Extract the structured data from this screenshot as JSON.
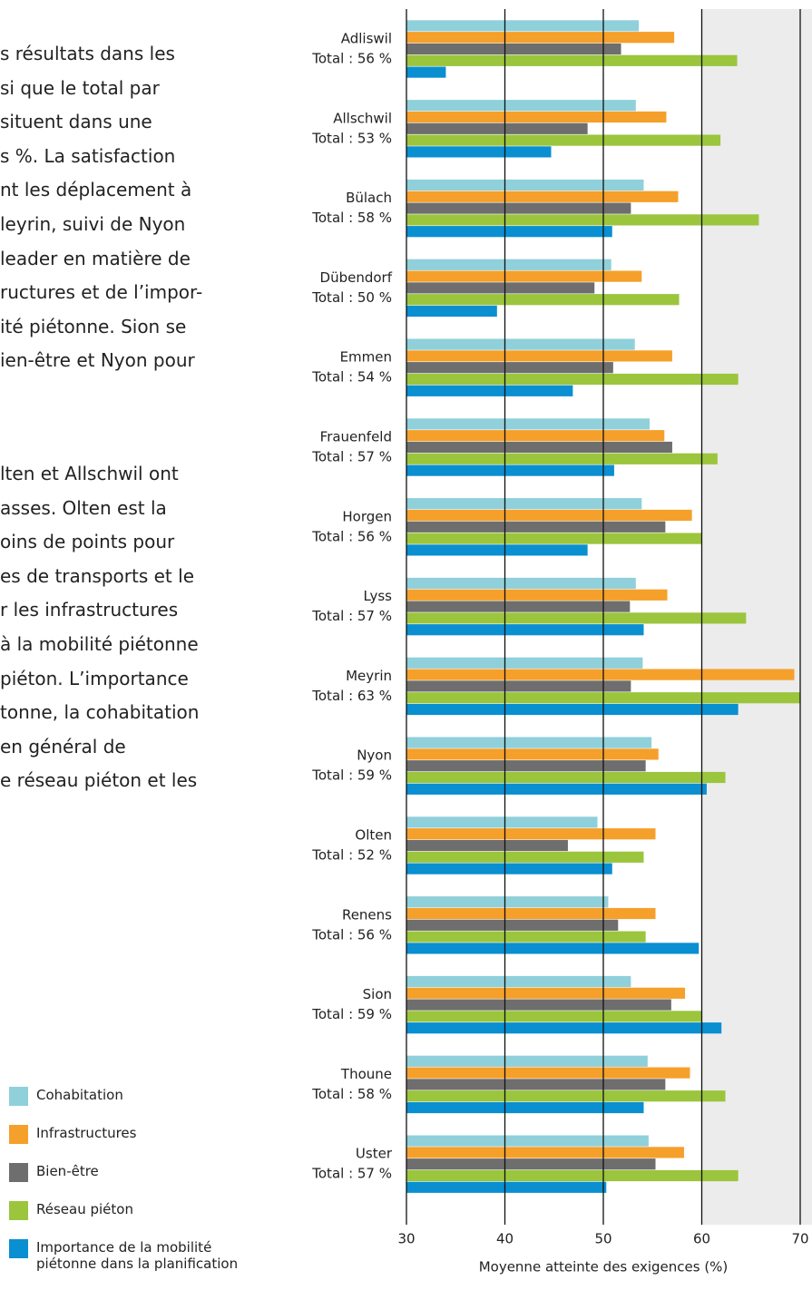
{
  "text_paragraphs": [
    [
      "s résultats dans les",
      "si que le total par",
      "situent dans une",
      "s %. La satisfaction",
      "nt les déplacement à",
      "leyrin, suivi de Nyon",
      "leader en matière de",
      "ructures et de l’impor-",
      "ité piétonne. Sion se",
      "ien-être et Nyon pour"
    ],
    [
      "lten et Allschwil ont",
      "asses. Olten est la",
      "oins de points pour",
      "es de transports et le",
      "r les infrastructures",
      "à la mobilité piétonne",
      "piéton. L’importance",
      "tonne, la cohabitation",
      "en général de",
      "e réseau piéton et les"
    ]
  ],
  "chart_data": {
    "type": "hbar",
    "xlabel": "Moyenne atteinte des exigences (%)",
    "categories": [
      "Adliswil",
      "Allschwil",
      "Bülach",
      "Dübendorf",
      "Emmen",
      "Frauenfeld",
      "Horgen",
      "Lyss",
      "Meyrin",
      "Nyon",
      "Olten",
      "Renens",
      "Sion",
      "Thoune",
      "Uster"
    ],
    "totals": [
      "Total : 56 %",
      "Total : 53 %",
      "Total : 58 %",
      "Total : 50 %",
      "Total : 54 %",
      "Total : 57 %",
      "Total : 56 %",
      "Total : 57 %",
      "Total : 63 %",
      "Total : 59 %",
      "Total : 52 %",
      "Total : 56 %",
      "Total : 59 %",
      "Total : 58 %",
      "Total : 57 %"
    ],
    "series": [
      {
        "name": "Cohabitation",
        "color": "#8fd0db",
        "values": [
          53.6,
          53.3,
          54.1,
          50.8,
          53.2,
          54.7,
          53.9,
          53.3,
          54.0,
          54.9,
          49.4,
          50.5,
          52.8,
          54.5,
          54.6
        ]
      },
      {
        "name": "Infrastructures",
        "color": "#f5a02a",
        "values": [
          57.2,
          56.4,
          57.6,
          53.9,
          57.0,
          56.2,
          59.0,
          56.5,
          69.4,
          55.6,
          55.3,
          55.3,
          58.3,
          58.8,
          58.2
        ]
      },
      {
        "name": "Bien-être",
        "color": "#6e6e6e",
        "values": [
          51.8,
          48.4,
          52.8,
          49.1,
          51.0,
          57.0,
          56.3,
          52.7,
          52.8,
          54.3,
          46.4,
          51.5,
          56.9,
          56.3,
          55.3
        ]
      },
      {
        "name": "Réseau piéton",
        "color": "#9bc53d",
        "values": [
          63.6,
          61.9,
          65.8,
          57.7,
          63.7,
          61.6,
          60.0,
          64.5,
          70.0,
          62.4,
          54.1,
          54.3,
          60.0,
          62.4,
          63.7
        ]
      },
      {
        "name": "Importance de la mobilité piétonne dans la planification",
        "color": "#0a8fd1",
        "values": [
          34.0,
          44.7,
          50.9,
          39.2,
          46.9,
          51.1,
          48.4,
          54.1,
          63.7,
          60.5,
          50.9,
          59.7,
          62.0,
          54.1,
          50.3
        ]
      }
    ],
    "xlim": [
      30,
      70
    ],
    "xticks": [
      30,
      40,
      50,
      60,
      70
    ],
    "grid": true
  }
}
